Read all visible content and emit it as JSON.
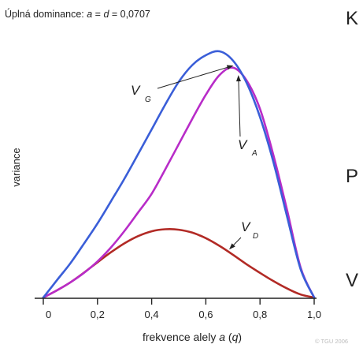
{
  "chart_data": {
    "type": "line",
    "title": "Úplná dominance: a = d = 0,0707",
    "title_parts": [
      "Úplná dominance: ",
      "a",
      " = ",
      "d",
      " = 0,0707"
    ],
    "xlabel": "frekvence alely a (q)",
    "xlabel_parts": [
      "frekvence alely ",
      "a",
      " (",
      "q",
      ")"
    ],
    "ylabel": "variance",
    "xlim": [
      0,
      1
    ],
    "x_ticks": [
      "0",
      "0,2",
      "0,4",
      "0,6",
      "0,8",
      "1,0"
    ],
    "x_tick_values": [
      0,
      0.2,
      0.4,
      0.6,
      0.8,
      1.0
    ],
    "ylim": [
      0,
      1.1
    ],
    "x": [
      0,
      0.05,
      0.1,
      0.15,
      0.2,
      0.25,
      0.3,
      0.35,
      0.4,
      0.45,
      0.5,
      0.55,
      0.6,
      0.65,
      0.7,
      0.75,
      0.8,
      0.85,
      0.9,
      0.95,
      1.0
    ],
    "series": [
      {
        "name": "VG",
        "label_main": "V",
        "label_sub": "G",
        "color": "#3a5ed8",
        "values": [
          0,
          0.075,
          0.149,
          0.234,
          0.322,
          0.419,
          0.518,
          0.624,
          0.731,
          0.839,
          0.938,
          1.011,
          1.054,
          1.071,
          1.031,
          0.935,
          0.785,
          0.587,
          0.352,
          0.123,
          0
        ]
      },
      {
        "name": "VA",
        "label_main": "V",
        "label_sub": "A",
        "color": "#b82cc8",
        "values": [
          0,
          0.031,
          0.066,
          0.107,
          0.157,
          0.218,
          0.29,
          0.37,
          0.451,
          0.557,
          0.667,
          0.777,
          0.882,
          0.967,
          1.0,
          0.945,
          0.82,
          0.617,
          0.38,
          0.13,
          0
        ]
      },
      {
        "name": "VD",
        "label_main": "V",
        "label_sub": "D",
        "color": "#b22a25",
        "values": [
          0,
          0.031,
          0.066,
          0.108,
          0.153,
          0.197,
          0.236,
          0.267,
          0.288,
          0.297,
          0.295,
          0.282,
          0.258,
          0.225,
          0.186,
          0.145,
          0.107,
          0.071,
          0.039,
          0.013,
          0
        ]
      }
    ],
    "annotations": [
      {
        "series": "VG",
        "at_x": 0.71
      },
      {
        "series": "VA",
        "at_x": 0.72
      },
      {
        "series": "VD",
        "at_x": 0.68
      }
    ],
    "grid": false,
    "copyright": "© TGU 2006"
  },
  "cut_letters": {
    "k": "K",
    "p": "P",
    "v": "V"
  },
  "colors": {
    "axis": "#222222",
    "text": "#222222",
    "muted": "#bbbbbb"
  }
}
